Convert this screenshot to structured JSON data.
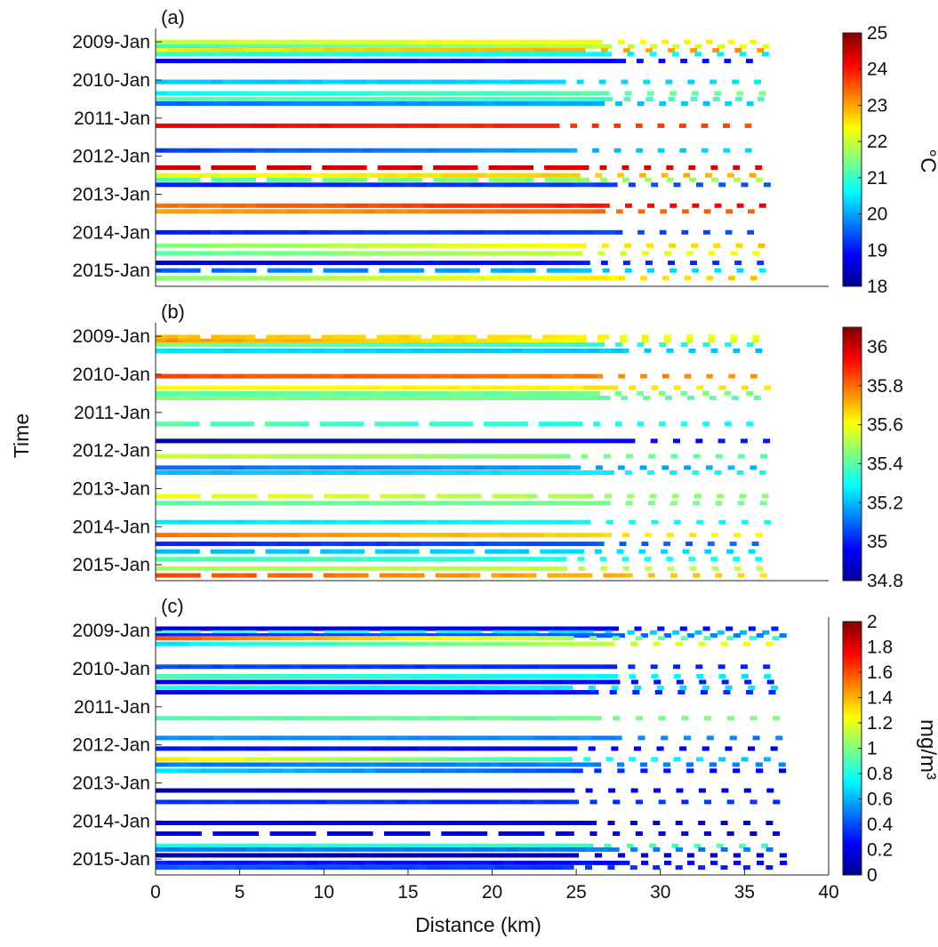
{
  "figure": {
    "ylabel": "Time",
    "xlabel": "Distance (km)",
    "xticks": [
      0,
      5,
      10,
      15,
      20,
      25,
      30,
      35,
      40
    ],
    "time_ticks": [
      "2009-Jan",
      "2010-Jan",
      "2011-Jan",
      "2012-Jan",
      "2013-Jan",
      "2014-Jan",
      "2015-Jan"
    ]
  },
  "colormap": "jet",
  "chart_data": [
    {
      "type": "heatmap",
      "panel_label": "(a)",
      "xlim": [
        0,
        40
      ],
      "ylim": [
        "2008-Nov",
        "2015-Jun"
      ],
      "x_extent_km": [
        0,
        37.5
      ],
      "colorbar": {
        "label": "°C",
        "range": [
          18,
          25
        ],
        "ticks": [
          18,
          19,
          20,
          21,
          22,
          23,
          24,
          25
        ]
      },
      "transects": [
        {
          "t": 2009.0,
          "start": 22,
          "end": 22.5
        },
        {
          "t": 2009.12,
          "start": 21,
          "end": 22.3
        },
        {
          "t": 2009.22,
          "start": 22.5,
          "end": 23.2
        },
        {
          "t": 2009.32,
          "start": 21,
          "end": 20.5
        },
        {
          "t": 2009.5,
          "start": 18.8,
          "end": 19.0
        },
        {
          "t": 2010.05,
          "start": 20.2,
          "end": 20.4
        },
        {
          "t": 2010.35,
          "start": 20.6,
          "end": 21.5
        },
        {
          "t": 2010.5,
          "start": 21.3,
          "end": 21.0
        },
        {
          "t": 2010.62,
          "start": 19.6,
          "end": 20.3
        },
        {
          "t": 2011.2,
          "start": 24.2,
          "end": 23.6
        },
        {
          "t": 2011.85,
          "start": 19.3,
          "end": 20.4
        },
        {
          "t": 2012.3,
          "start": 24.5,
          "end": 24.3
        },
        {
          "t": 2012.5,
          "start": 22.2,
          "end": 23.0
        },
        {
          "t": 2012.62,
          "start": 21.2,
          "end": 21.8
        },
        {
          "t": 2012.75,
          "start": 19.0,
          "end": 19.5
        },
        {
          "t": 2013.3,
          "start": 23.3,
          "end": 24.3
        },
        {
          "t": 2013.45,
          "start": 23.0,
          "end": 23.5
        },
        {
          "t": 2014.0,
          "start": 19.1,
          "end": 19.4
        },
        {
          "t": 2014.35,
          "start": 21.5,
          "end": 22.8
        },
        {
          "t": 2014.55,
          "start": 21.2,
          "end": 22.4
        },
        {
          "t": 2014.8,
          "start": 18.6,
          "end": 19.2
        },
        {
          "t": 2015.0,
          "start": 19.5,
          "end": 20.5
        },
        {
          "t": 2015.2,
          "start": 21.5,
          "end": 22.8
        }
      ]
    },
    {
      "type": "heatmap",
      "panel_label": "(b)",
      "xlim": [
        0,
        40
      ],
      "ylim": [
        "2008-Nov",
        "2015-Jun"
      ],
      "x_extent_km": [
        0,
        37.5
      ],
      "colorbar": {
        "label": "",
        "range": [
          34.8,
          36.1
        ],
        "ticks": [
          34.8,
          35,
          35.2,
          35.4,
          35.6,
          35.8,
          36
        ]
      },
      "transects": [
        {
          "t": 2009.02,
          "start": 35.7,
          "end": 35.6
        },
        {
          "t": 2009.12,
          "start": 35.75,
          "end": 35.55
        },
        {
          "t": 2009.22,
          "start": 35.45,
          "end": 35.3
        },
        {
          "t": 2009.38,
          "start": 35.25,
          "end": 35.2
        },
        {
          "t": 2010.05,
          "start": 35.85,
          "end": 35.75
        },
        {
          "t": 2010.35,
          "start": 35.6,
          "end": 35.65
        },
        {
          "t": 2010.5,
          "start": 35.4,
          "end": 35.45
        },
        {
          "t": 2010.62,
          "start": 35.45,
          "end": 35.4
        },
        {
          "t": 2011.3,
          "start": 35.4,
          "end": 35.3
        },
        {
          "t": 2011.75,
          "start": 34.85,
          "end": 35.0
        },
        {
          "t": 2012.15,
          "start": 35.55,
          "end": 35.4
        },
        {
          "t": 2012.45,
          "start": 35.1,
          "end": 35.2
        },
        {
          "t": 2012.58,
          "start": 35.2,
          "end": 35.3
        },
        {
          "t": 2013.2,
          "start": 35.6,
          "end": 35.45
        },
        {
          "t": 2013.38,
          "start": 35.4,
          "end": 35.45
        },
        {
          "t": 2013.88,
          "start": 35.25,
          "end": 35.3
        },
        {
          "t": 2014.22,
          "start": 35.8,
          "end": 35.6
        },
        {
          "t": 2014.45,
          "start": 35.0,
          "end": 35.1
        },
        {
          "t": 2014.65,
          "start": 35.2,
          "end": 35.25
        },
        {
          "t": 2014.85,
          "start": 35.4,
          "end": 35.3
        },
        {
          "t": 2015.1,
          "start": 35.5,
          "end": 35.55
        },
        {
          "t": 2015.28,
          "start": 35.85,
          "end": 35.65
        }
      ]
    },
    {
      "type": "heatmap",
      "panel_label": "(c)",
      "xlim": [
        0,
        40
      ],
      "ylim": [
        "2008-Nov",
        "2015-Jun"
      ],
      "x_extent_km": [
        0,
        38.5
      ],
      "colorbar": {
        "label": "mg/m³",
        "range": [
          0,
          2
        ],
        "ticks": [
          0,
          0.2,
          0.4,
          0.6,
          0.8,
          1,
          1.2,
          1.4,
          1.6,
          1.8,
          2
        ]
      },
      "transects": [
        {
          "t": 2008.95,
          "start": 0.15,
          "end": 0.3
        },
        {
          "t": 2009.05,
          "start": 0.9,
          "end": 0.6
        },
        {
          "t": 2009.13,
          "start": 0.3,
          "end": 0.5
        },
        {
          "t": 2009.2,
          "start": 1.6,
          "end": 0.8
        },
        {
          "t": 2009.35,
          "start": 0.7,
          "end": 1.3
        },
        {
          "t": 2009.95,
          "start": 0.4,
          "end": 0.3
        },
        {
          "t": 2010.2,
          "start": 0.9,
          "end": 0.7
        },
        {
          "t": 2010.35,
          "start": 0.2,
          "end": 0.3
        },
        {
          "t": 2010.5,
          "start": 0.8,
          "end": 0.7
        },
        {
          "t": 2010.62,
          "start": 0.2,
          "end": 0.35
        },
        {
          "t": 2011.3,
          "start": 0.9,
          "end": 1.0
        },
        {
          "t": 2011.82,
          "start": 0.55,
          "end": 0.5
        },
        {
          "t": 2012.1,
          "start": 0.3,
          "end": 0.2
        },
        {
          "t": 2012.38,
          "start": 1.3,
          "end": 0.6
        },
        {
          "t": 2012.52,
          "start": 0.5,
          "end": 0.5
        },
        {
          "t": 2012.68,
          "start": 0.7,
          "end": 0.2
        },
        {
          "t": 2013.2,
          "start": 0.05,
          "end": 0.2
        },
        {
          "t": 2013.5,
          "start": 0.35,
          "end": 0.35
        },
        {
          "t": 2014.05,
          "start": 0.2,
          "end": 0.15
        },
        {
          "t": 2014.33,
          "start": 0.25,
          "end": 0.2
        },
        {
          "t": 2014.65,
          "start": 0.8,
          "end": 0.9
        },
        {
          "t": 2014.75,
          "start": 0.5,
          "end": 0.5
        },
        {
          "t": 2014.9,
          "start": 0.1,
          "end": 0.15
        },
        {
          "t": 2015.1,
          "start": 0.3,
          "end": 0.25
        },
        {
          "t": 2015.22,
          "start": 0.45,
          "end": 0.3
        }
      ]
    }
  ]
}
